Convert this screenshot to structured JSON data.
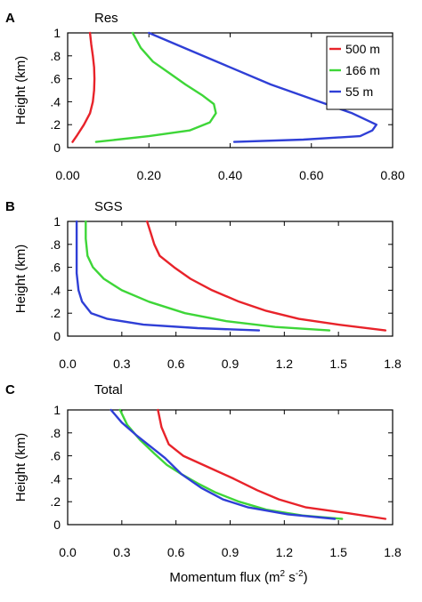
{
  "figure": {
    "xlabel_main": "Momentum flux (m",
    "xlabel_sup1": "2",
    "xlabel_mid": " s",
    "xlabel_sup2": "-2",
    "xlabel_end": ")"
  },
  "chart_data": [
    {
      "type": "line",
      "panel": "A",
      "title": "Res",
      "ylabel": "Height (km)",
      "xlim": [
        0,
        0.8
      ],
      "ylim": [
        0,
        1
      ],
      "xticks": [
        0.0,
        0.2,
        0.4,
        0.6,
        0.8
      ],
      "xtick_labels": [
        "0.00",
        "0.20",
        "0.40",
        "0.60",
        "0.80"
      ],
      "yticks": [
        0,
        0.2,
        0.4,
        0.6,
        0.8,
        1
      ],
      "ytick_labels": [
        "0",
        ".2",
        ".4",
        ".6",
        ".8",
        "1"
      ],
      "legend": {
        "placement": "top-right"
      },
      "series": [
        {
          "name": "500 m",
          "color": "#e8232a",
          "x": [
            0.012,
            0.022,
            0.04,
            0.055,
            0.062,
            0.065,
            0.066,
            0.065,
            0.062,
            0.058,
            0.055
          ],
          "y": [
            0.05,
            0.1,
            0.2,
            0.3,
            0.4,
            0.5,
            0.6,
            0.7,
            0.8,
            0.9,
            1.0
          ]
        },
        {
          "name": "166 m",
          "color": "#3ed638",
          "x": [
            0.07,
            0.2,
            0.3,
            0.35,
            0.365,
            0.36,
            0.33,
            0.29,
            0.25,
            0.21,
            0.18,
            0.16
          ],
          "y": [
            0.05,
            0.1,
            0.15,
            0.22,
            0.3,
            0.38,
            0.46,
            0.55,
            0.65,
            0.75,
            0.87,
            1.0
          ]
        },
        {
          "name": "55 m",
          "color": "#2f3fd6",
          "x": [
            0.41,
            0.58,
            0.72,
            0.75,
            0.76,
            0.7,
            0.62,
            0.5,
            0.4,
            0.3,
            0.2
          ],
          "y": [
            0.05,
            0.07,
            0.1,
            0.15,
            0.2,
            0.3,
            0.4,
            0.55,
            0.7,
            0.85,
            1.0
          ]
        }
      ]
    },
    {
      "type": "line",
      "panel": "B",
      "title": "SGS",
      "ylabel": "Height (km)",
      "xlim": [
        0,
        1.8
      ],
      "ylim": [
        0,
        1
      ],
      "xticks": [
        0.0,
        0.3,
        0.6,
        0.9,
        1.2,
        1.5,
        1.8
      ],
      "xtick_labels": [
        "0.0",
        "0.3",
        "0.6",
        "0.9",
        "1.2",
        "1.5",
        "1.8"
      ],
      "yticks": [
        0,
        0.2,
        0.4,
        0.6,
        0.8,
        1
      ],
      "ytick_labels": [
        "0",
        ".2",
        ".4",
        ".6",
        ".8",
        "1"
      ],
      "series": [
        {
          "name": "500 m",
          "color": "#e8232a",
          "x": [
            1.76,
            1.5,
            1.28,
            1.1,
            0.95,
            0.8,
            0.68,
            0.59,
            0.51,
            0.48,
            0.46,
            0.44
          ],
          "y": [
            0.05,
            0.1,
            0.15,
            0.22,
            0.3,
            0.4,
            0.5,
            0.6,
            0.7,
            0.8,
            0.9,
            1.0
          ]
        },
        {
          "name": "166 m",
          "color": "#3ed638",
          "x": [
            1.45,
            1.15,
            0.88,
            0.65,
            0.45,
            0.3,
            0.2,
            0.14,
            0.11,
            0.1,
            0.1
          ],
          "y": [
            0.05,
            0.08,
            0.13,
            0.2,
            0.3,
            0.4,
            0.5,
            0.6,
            0.7,
            0.85,
            1.0
          ]
        },
        {
          "name": "55 m",
          "color": "#2f3fd6",
          "x": [
            1.06,
            0.72,
            0.42,
            0.22,
            0.13,
            0.08,
            0.06,
            0.05,
            0.05,
            0.05,
            0.05
          ],
          "y": [
            0.05,
            0.07,
            0.1,
            0.15,
            0.2,
            0.3,
            0.4,
            0.55,
            0.7,
            0.85,
            1.0
          ]
        }
      ]
    },
    {
      "type": "line",
      "panel": "C",
      "title": "Total",
      "ylabel": "Height (km)",
      "xlim": [
        0,
        1.8
      ],
      "ylim": [
        0,
        1
      ],
      "xticks": [
        0.0,
        0.3,
        0.6,
        0.9,
        1.2,
        1.5,
        1.8
      ],
      "xtick_labels": [
        "0.0",
        "0.3",
        "0.6",
        "0.9",
        "1.2",
        "1.5",
        "1.8"
      ],
      "yticks": [
        0,
        0.2,
        0.4,
        0.6,
        0.8,
        1
      ],
      "ytick_labels": [
        "0",
        ".2",
        ".4",
        ".6",
        ".8",
        "1"
      ],
      "series": [
        {
          "name": "500 m",
          "color": "#e8232a",
          "x": [
            1.76,
            1.55,
            1.32,
            1.17,
            1.05,
            0.92,
            0.78,
            0.64,
            0.56,
            0.52,
            0.5
          ],
          "y": [
            0.05,
            0.1,
            0.15,
            0.22,
            0.3,
            0.4,
            0.5,
            0.6,
            0.7,
            0.85,
            1.0
          ]
        },
        {
          "name": "166 m",
          "color": "#3ed638",
          "x": [
            1.52,
            1.3,
            1.1,
            0.95,
            0.82,
            0.72,
            0.63,
            0.55,
            0.48,
            0.4,
            0.33,
            0.29
          ],
          "y": [
            0.05,
            0.08,
            0.13,
            0.2,
            0.28,
            0.36,
            0.44,
            0.52,
            0.62,
            0.74,
            0.87,
            1.0
          ]
        },
        {
          "name": "55 m",
          "color": "#2f3fd6",
          "x": [
            1.48,
            1.22,
            1.0,
            0.86,
            0.74,
            0.63,
            0.54,
            0.46,
            0.38,
            0.3,
            0.24
          ],
          "y": [
            0.05,
            0.09,
            0.15,
            0.22,
            0.32,
            0.44,
            0.58,
            0.68,
            0.78,
            0.89,
            1.0
          ]
        }
      ]
    }
  ]
}
